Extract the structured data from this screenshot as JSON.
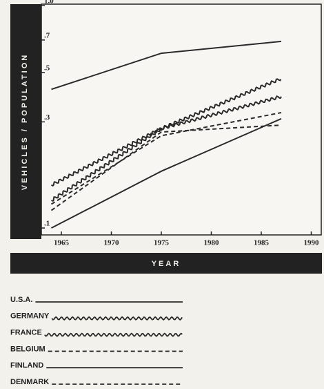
{
  "chart_data": {
    "type": "line",
    "y_label": "VEHICLES / POPULATION",
    "x_label": "YEAR",
    "x": [
      1964,
      1975,
      1987
    ],
    "xlim": [
      1963,
      1991
    ],
    "xticks": [
      1965,
      1970,
      1975,
      1980,
      1985,
      1990
    ],
    "ylim": [
      0.1,
      1.0
    ],
    "log_y": true,
    "yticks": [
      {
        "value": 0.1,
        "label": ".1"
      },
      {
        "value": 0.3,
        "label": ".3"
      },
      {
        "value": 0.5,
        "label": ".5"
      },
      {
        "value": 0.7,
        "label": ".7"
      },
      {
        "value": 1.0,
        "label": "1.0"
      }
    ],
    "series": [
      {
        "name": "U.S.A.",
        "color": "#2a2a2a",
        "style": "solid",
        "values": [
          0.42,
          0.61,
          0.69
        ]
      },
      {
        "name": "GERMANY",
        "color": "#2a2a2a",
        "style": "wavy",
        "values": [
          0.156,
          0.28,
          0.39
        ]
      },
      {
        "name": "FRANCE",
        "color": "#2a2a2a",
        "style": "wavy",
        "values": [
          0.133,
          0.28,
          0.47
        ]
      },
      {
        "name": "BELGIUM",
        "color": "#2a2a2a",
        "style": "dashed",
        "values": [
          0.128,
          0.26,
          0.33
        ]
      },
      {
        "name": "FINLAND",
        "color": "#2a2a2a",
        "style": "solid",
        "values": [
          0.1,
          0.18,
          0.31
        ]
      },
      {
        "name": "DENMARK",
        "color": "#2a2a2a",
        "style": "dashed",
        "values": [
          0.12,
          0.27,
          0.29
        ]
      }
    ]
  }
}
